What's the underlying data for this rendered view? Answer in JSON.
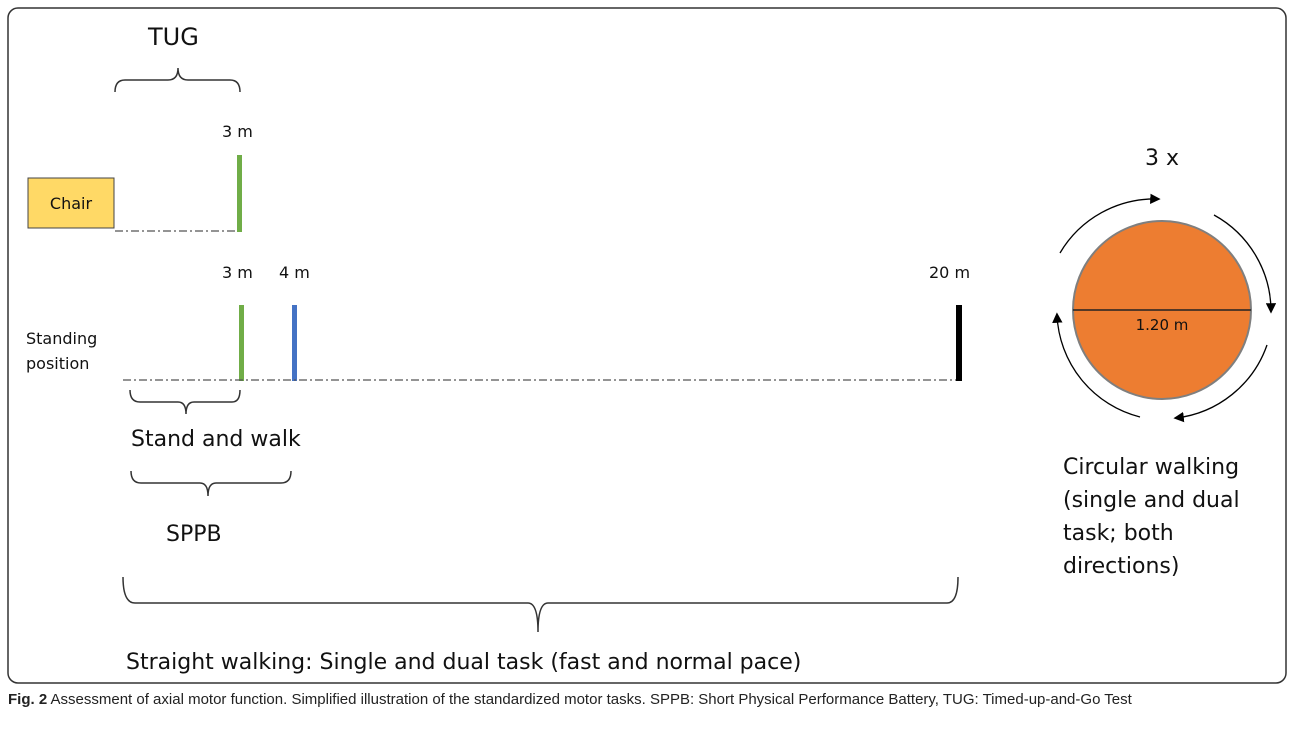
{
  "labels": {
    "tug": "TUG",
    "tug_distance": "3 m",
    "chair": "Chair",
    "standing_position_line1": "Standing",
    "standing_position_line2": "position",
    "marker_3m": "3 m",
    "marker_4m": "4 m",
    "marker_20m": "20 m",
    "stand_and_walk": "Stand and walk",
    "sppb": "SPPB",
    "straight_walking": "Straight walking: Single and dual task (fast and normal pace)",
    "repetitions": "3 x",
    "circle_diameter": "1.20 m",
    "circular_walking_lines": [
      "Circular walking",
      "(single and dual",
      "task; both",
      "directions)"
    ]
  },
  "caption": {
    "fig_label": "Fig. 2",
    "text": "Assessment of axial motor function. Simplified illustration of the standardized motor tasks. SPPB: Short Physical Performance Battery, TUG: Timed-up-and-Go Test"
  },
  "colors": {
    "green_marker": "#70ad47",
    "blue_marker": "#4472c4",
    "black_marker": "#000000",
    "chair_fill": "#ffd966",
    "circle_fill": "#ed7d31",
    "circle_stroke": "#7f7f7f"
  }
}
